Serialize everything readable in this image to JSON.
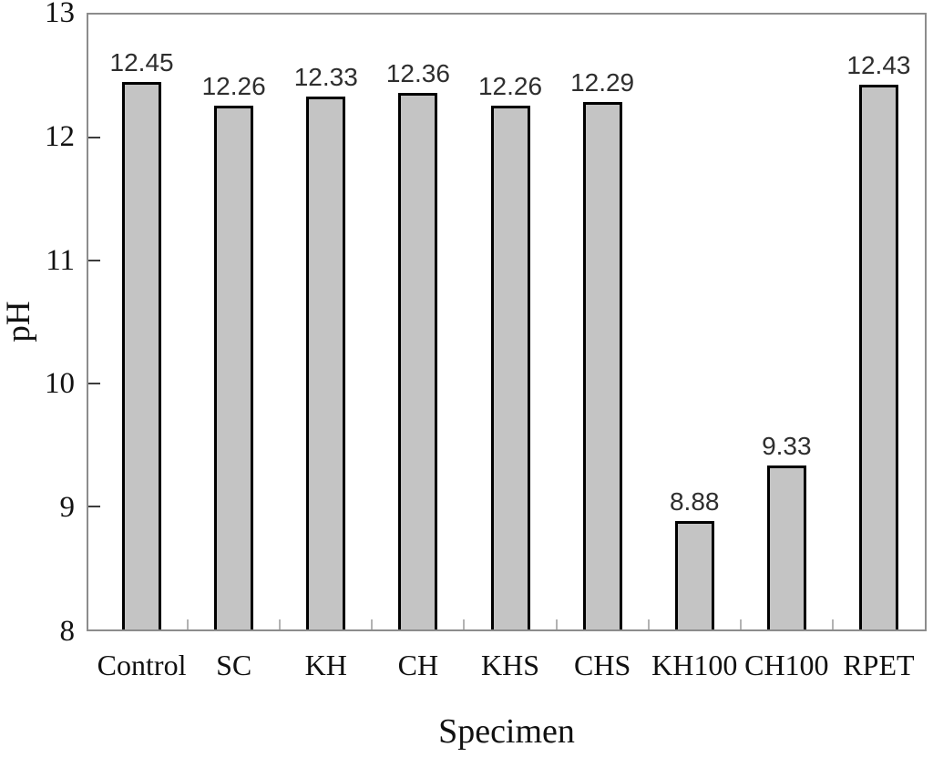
{
  "chart_data": {
    "type": "bar",
    "title": "",
    "xlabel": "Specimen",
    "ylabel": "pH",
    "categories": [
      "Control",
      "SC",
      "KH",
      "CH",
      "KHS",
      "CHS",
      "KH100",
      "CH100",
      "RPET"
    ],
    "values": [
      12.45,
      12.26,
      12.33,
      12.36,
      12.26,
      12.29,
      8.88,
      9.33,
      12.43
    ],
    "value_labels": [
      "12.45",
      "12.26",
      "12.33",
      "12.36",
      "12.26",
      "12.29",
      "8.88",
      "9.33",
      "12.43"
    ],
    "ylim": [
      8,
      13
    ],
    "yticks": [
      8,
      9,
      10,
      11,
      12,
      13
    ],
    "grid": false,
    "legend": false,
    "bar_fill": "#c4c4c4",
    "bar_border": "#000000",
    "frame_color": "#8c8c8c",
    "value_label_color": "#2e2e2e",
    "axis_text_color": "#111111"
  }
}
